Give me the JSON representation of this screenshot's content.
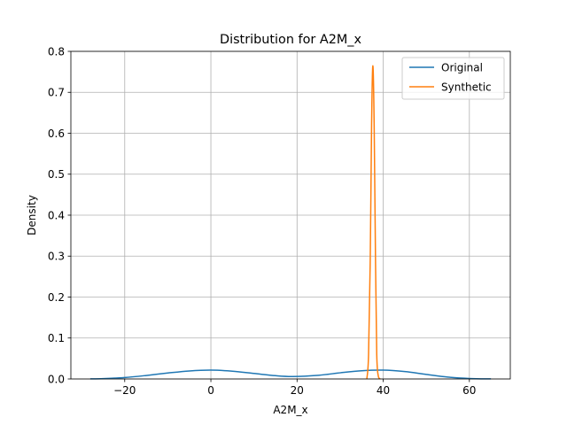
{
  "chart_data": {
    "type": "line",
    "title": "Distribution for A2M_x",
    "xlabel": "A2M_x",
    "ylabel": "Density",
    "xlim": [
      -32.5,
      69.5
    ],
    "ylim": [
      0,
      0.8
    ],
    "xticks": [
      -20,
      0,
      20,
      40,
      60
    ],
    "xtick_labels": [
      "−20",
      "0",
      "20",
      "40",
      "60"
    ],
    "yticks": [
      0.0,
      0.1,
      0.2,
      0.3,
      0.4,
      0.5,
      0.6,
      0.7,
      0.8
    ],
    "ytick_labels": [
      "0.0",
      "0.1",
      "0.2",
      "0.3",
      "0.4",
      "0.5",
      "0.6",
      "0.7",
      "0.8"
    ],
    "grid": true,
    "legend_position": "top-right",
    "series": [
      {
        "name": "Original",
        "color": "#1f77b4",
        "x": [
          -28,
          -25,
          -20,
          -15,
          -10,
          -5,
          0,
          5,
          10,
          15,
          19,
          25,
          30,
          35,
          40,
          45,
          50,
          55,
          60,
          65
        ],
        "y": [
          0.0003,
          0.0009,
          0.0035,
          0.0085,
          0.0145,
          0.0195,
          0.0215,
          0.019,
          0.0135,
          0.008,
          0.006,
          0.009,
          0.015,
          0.02,
          0.0215,
          0.018,
          0.011,
          0.0045,
          0.0012,
          0.0002
        ]
      },
      {
        "name": "Synthetic",
        "color": "#ff7f0e",
        "x": [
          36.2,
          36.6,
          37.0,
          37.3,
          37.6,
          37.9,
          38.2,
          38.5,
          38.9,
          39.3
        ],
        "y": [
          0.0,
          0.06,
          0.3,
          0.62,
          0.765,
          0.62,
          0.3,
          0.06,
          0.005,
          0.0
        ]
      }
    ]
  }
}
